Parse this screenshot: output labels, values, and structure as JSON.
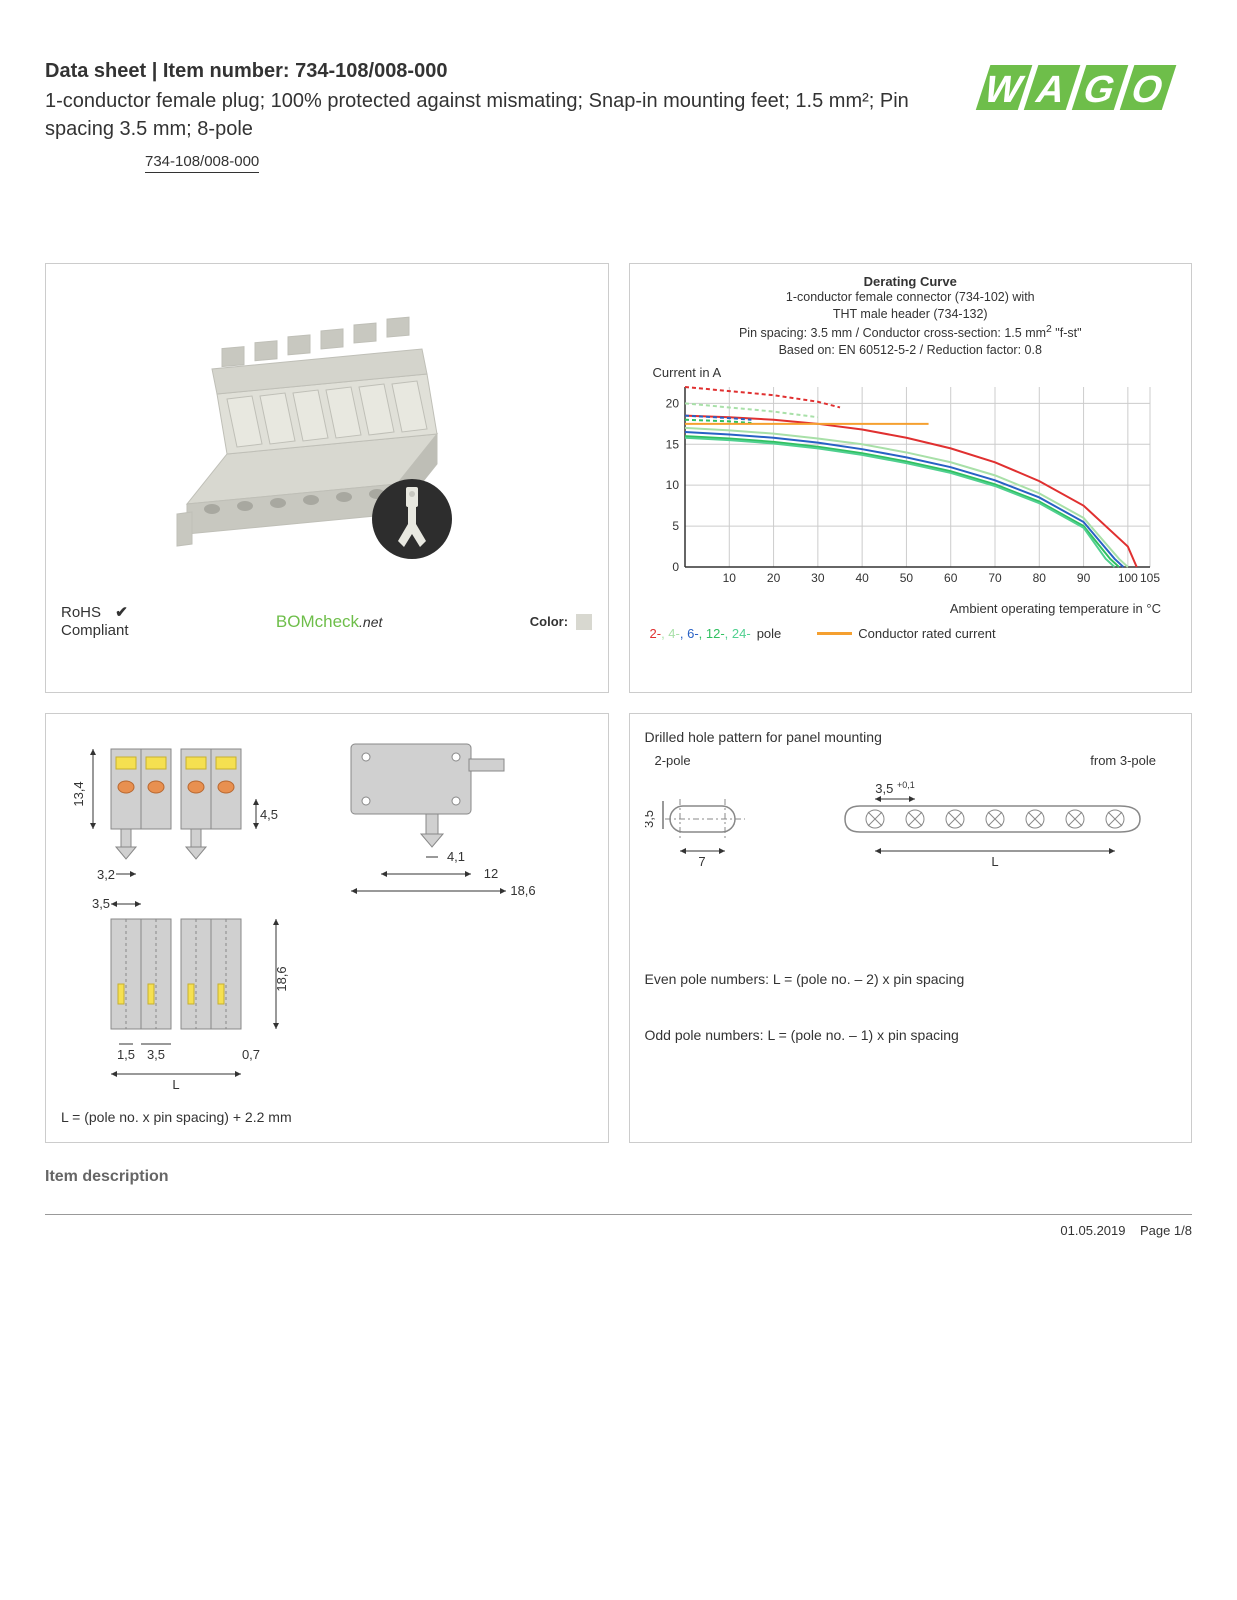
{
  "header": {
    "title_prefix": "Data sheet  |  Item number: ",
    "item_number": "734-108/008-000",
    "subtitle": "1-conductor female plug; 100% protected against mismating; Snap-in mounting feet; 1.5 mm²; Pin spacing 3.5 mm; 8-pole",
    "item_link": "734-108/008-000",
    "logo_text": "WAGO",
    "logo_color": "#6ebe4a"
  },
  "panel_tl": {
    "product_color": "#d8d8d0",
    "product_shadow": "#bfbfb7",
    "clip_bg": "#2d2d2d",
    "clip_fg": "#e8e8e0",
    "rohs_line1": "RoHS",
    "rohs_line2": "Compliant",
    "checkmark": "✔",
    "bomcheck_text": "BOMcheck",
    "bomcheck_suffix": ".net",
    "color_label": "Color:",
    "swatch_color": "#d8d8d0"
  },
  "panel_tr": {
    "title": "Derating Curve",
    "sub1": "1-conductor female connector (734-102) with",
    "sub2": "THT male header (734-132)",
    "sub3_a": "Pin spacing: 3.5 mm / Conductor cross-section: 1.5 mm",
    "sub3_b": "2",
    "sub3_c": " \"f-st\"",
    "sub4": "Based on: EN 60512-5-2 / Reduction factor: 0.8",
    "ylabel": "Current in A",
    "xlabel": "Ambient operating temperature in °C",
    "chart": {
      "ylim": [
        0,
        22
      ],
      "yticks": [
        0,
        5,
        10,
        15,
        20
      ],
      "xlim": [
        0,
        105
      ],
      "xticks": [
        10,
        20,
        30,
        40,
        50,
        60,
        70,
        80,
        90,
        100,
        105
      ],
      "grid_color": "#cccccc",
      "axis_color": "#333333",
      "bg_color": "#ffffff",
      "series": {
        "p2": {
          "color": "#e03030",
          "dash": "4 3",
          "pts": [
            [
              0,
              22
            ],
            [
              10,
              21.5
            ],
            [
              20,
              21
            ],
            [
              30,
              20.2
            ],
            [
              35,
              19.5
            ]
          ]
        },
        "p2s": {
          "color": "#e03030",
          "dash": "none",
          "pts": [
            [
              0,
              18.5
            ],
            [
              10,
              18.3
            ],
            [
              20,
              18
            ],
            [
              30,
              17.5
            ],
            [
              40,
              16.8
            ],
            [
              50,
              15.8
            ],
            [
              60,
              14.5
            ],
            [
              70,
              12.8
            ],
            [
              80,
              10.5
            ],
            [
              90,
              7.5
            ],
            [
              100,
              2.5
            ],
            [
              102,
              0
            ]
          ]
        },
        "p4": {
          "color": "#a8e0a8",
          "dash": "4 3",
          "pts": [
            [
              0,
              20
            ],
            [
              10,
              19.5
            ],
            [
              20,
              19
            ],
            [
              30,
              18.3
            ]
          ]
        },
        "p4s": {
          "color": "#a8e0a8",
          "dash": "none",
          "pts": [
            [
              0,
              17
            ],
            [
              10,
              16.7
            ],
            [
              20,
              16.3
            ],
            [
              30,
              15.7
            ],
            [
              40,
              15
            ],
            [
              50,
              14
            ],
            [
              60,
              12.8
            ],
            [
              70,
              11.2
            ],
            [
              80,
              9
            ],
            [
              90,
              6
            ],
            [
              98,
              1
            ],
            [
              100,
              0
            ]
          ]
        },
        "p6": {
          "color": "#2861c4",
          "dash": "4 3",
          "pts": [
            [
              0,
              18.5
            ],
            [
              10,
              18.2
            ],
            [
              15,
              18
            ]
          ]
        },
        "p6s": {
          "color": "#2861c4",
          "dash": "none",
          "pts": [
            [
              0,
              16.5
            ],
            [
              10,
              16.2
            ],
            [
              20,
              15.8
            ],
            [
              30,
              15.2
            ],
            [
              40,
              14.4
            ],
            [
              50,
              13.4
            ],
            [
              60,
              12.2
            ],
            [
              70,
              10.6
            ],
            [
              80,
              8.5
            ],
            [
              90,
              5.5
            ],
            [
              97,
              1
            ],
            [
              99,
              0
            ]
          ]
        },
        "p12": {
          "color": "#30c060",
          "dash": "4 3",
          "pts": [
            [
              0,
              18
            ],
            [
              10,
              17.8
            ],
            [
              15,
              17.6
            ]
          ]
        },
        "p12s": {
          "color": "#30c060",
          "dash": "none",
          "pts": [
            [
              0,
              16
            ],
            [
              10,
              15.7
            ],
            [
              20,
              15.3
            ],
            [
              30,
              14.7
            ],
            [
              40,
              13.9
            ],
            [
              50,
              12.9
            ],
            [
              60,
              11.7
            ],
            [
              70,
              10.1
            ],
            [
              80,
              8
            ],
            [
              90,
              5
            ],
            [
              96,
              1
            ],
            [
              98,
              0
            ]
          ]
        },
        "p24s": {
          "color": "#50d090",
          "dash": "none",
          "pts": [
            [
              0,
              15.8
            ],
            [
              10,
              15.5
            ],
            [
              20,
              15.1
            ],
            [
              30,
              14.5
            ],
            [
              40,
              13.7
            ],
            [
              50,
              12.7
            ],
            [
              60,
              11.5
            ],
            [
              70,
              9.9
            ],
            [
              80,
              7.8
            ],
            [
              90,
              4.8
            ],
            [
              95,
              1
            ],
            [
              97,
              0
            ]
          ]
        },
        "rated": {
          "color": "#f5a030",
          "dash": "none",
          "pts": [
            [
              0,
              17.5
            ],
            [
              55,
              17.5
            ]
          ]
        }
      }
    },
    "legend": {
      "poles": [
        {
          "label": "2-",
          "color": "#e03030"
        },
        {
          "label": ", 4-",
          "color": "#a8e0a8"
        },
        {
          "label": ", 6-",
          "color": "#2861c4"
        },
        {
          "label": ", 12-",
          "color": "#30c060"
        },
        {
          "label": ", 24-",
          "color": "#50d090"
        }
      ],
      "pole_suffix": " pole",
      "rated_color": "#f5a030",
      "rated_label": "Conductor rated current"
    }
  },
  "panel_bl": {
    "dim_13_4": "13,4",
    "dim_4_5": "4,5",
    "dim_3_2": "3,2",
    "dim_4_1": "4,1",
    "dim_12": "12",
    "dim_18_6a": "18,6",
    "dim_3_5": "3,5",
    "dim_1_5": "1,5",
    "dim_3_5b": "3,5",
    "dim_0_7": "0,7",
    "dim_18_6b": "18,6",
    "dim_L": "L",
    "formula": "L = (pole no. x pin spacing) + 2.2 mm",
    "body_color": "#d0d0d0",
    "body_stroke": "#888888",
    "yellow": "#f5e050",
    "orange": "#e89050"
  },
  "panel_br": {
    "title": "Drilled hole pattern for panel mounting",
    "left_label": "2-pole",
    "right_label": "from 3-pole",
    "dim_3_5": "3,5",
    "dim_3_5_tol": "3,5 ",
    "dim_tol": "+0,1",
    "dim_7": "7",
    "dim_L": "L",
    "line1": "Even pole numbers: L = (pole no. – 2) x pin spacing",
    "line2": "Odd pole numbers: L = (pole no. – 1) x pin spacing",
    "stroke": "#888888",
    "fill": "#e8e8e8"
  },
  "section_heading": "Item description",
  "footer": {
    "date": "01.05.2019",
    "page": "Page 1/8"
  }
}
